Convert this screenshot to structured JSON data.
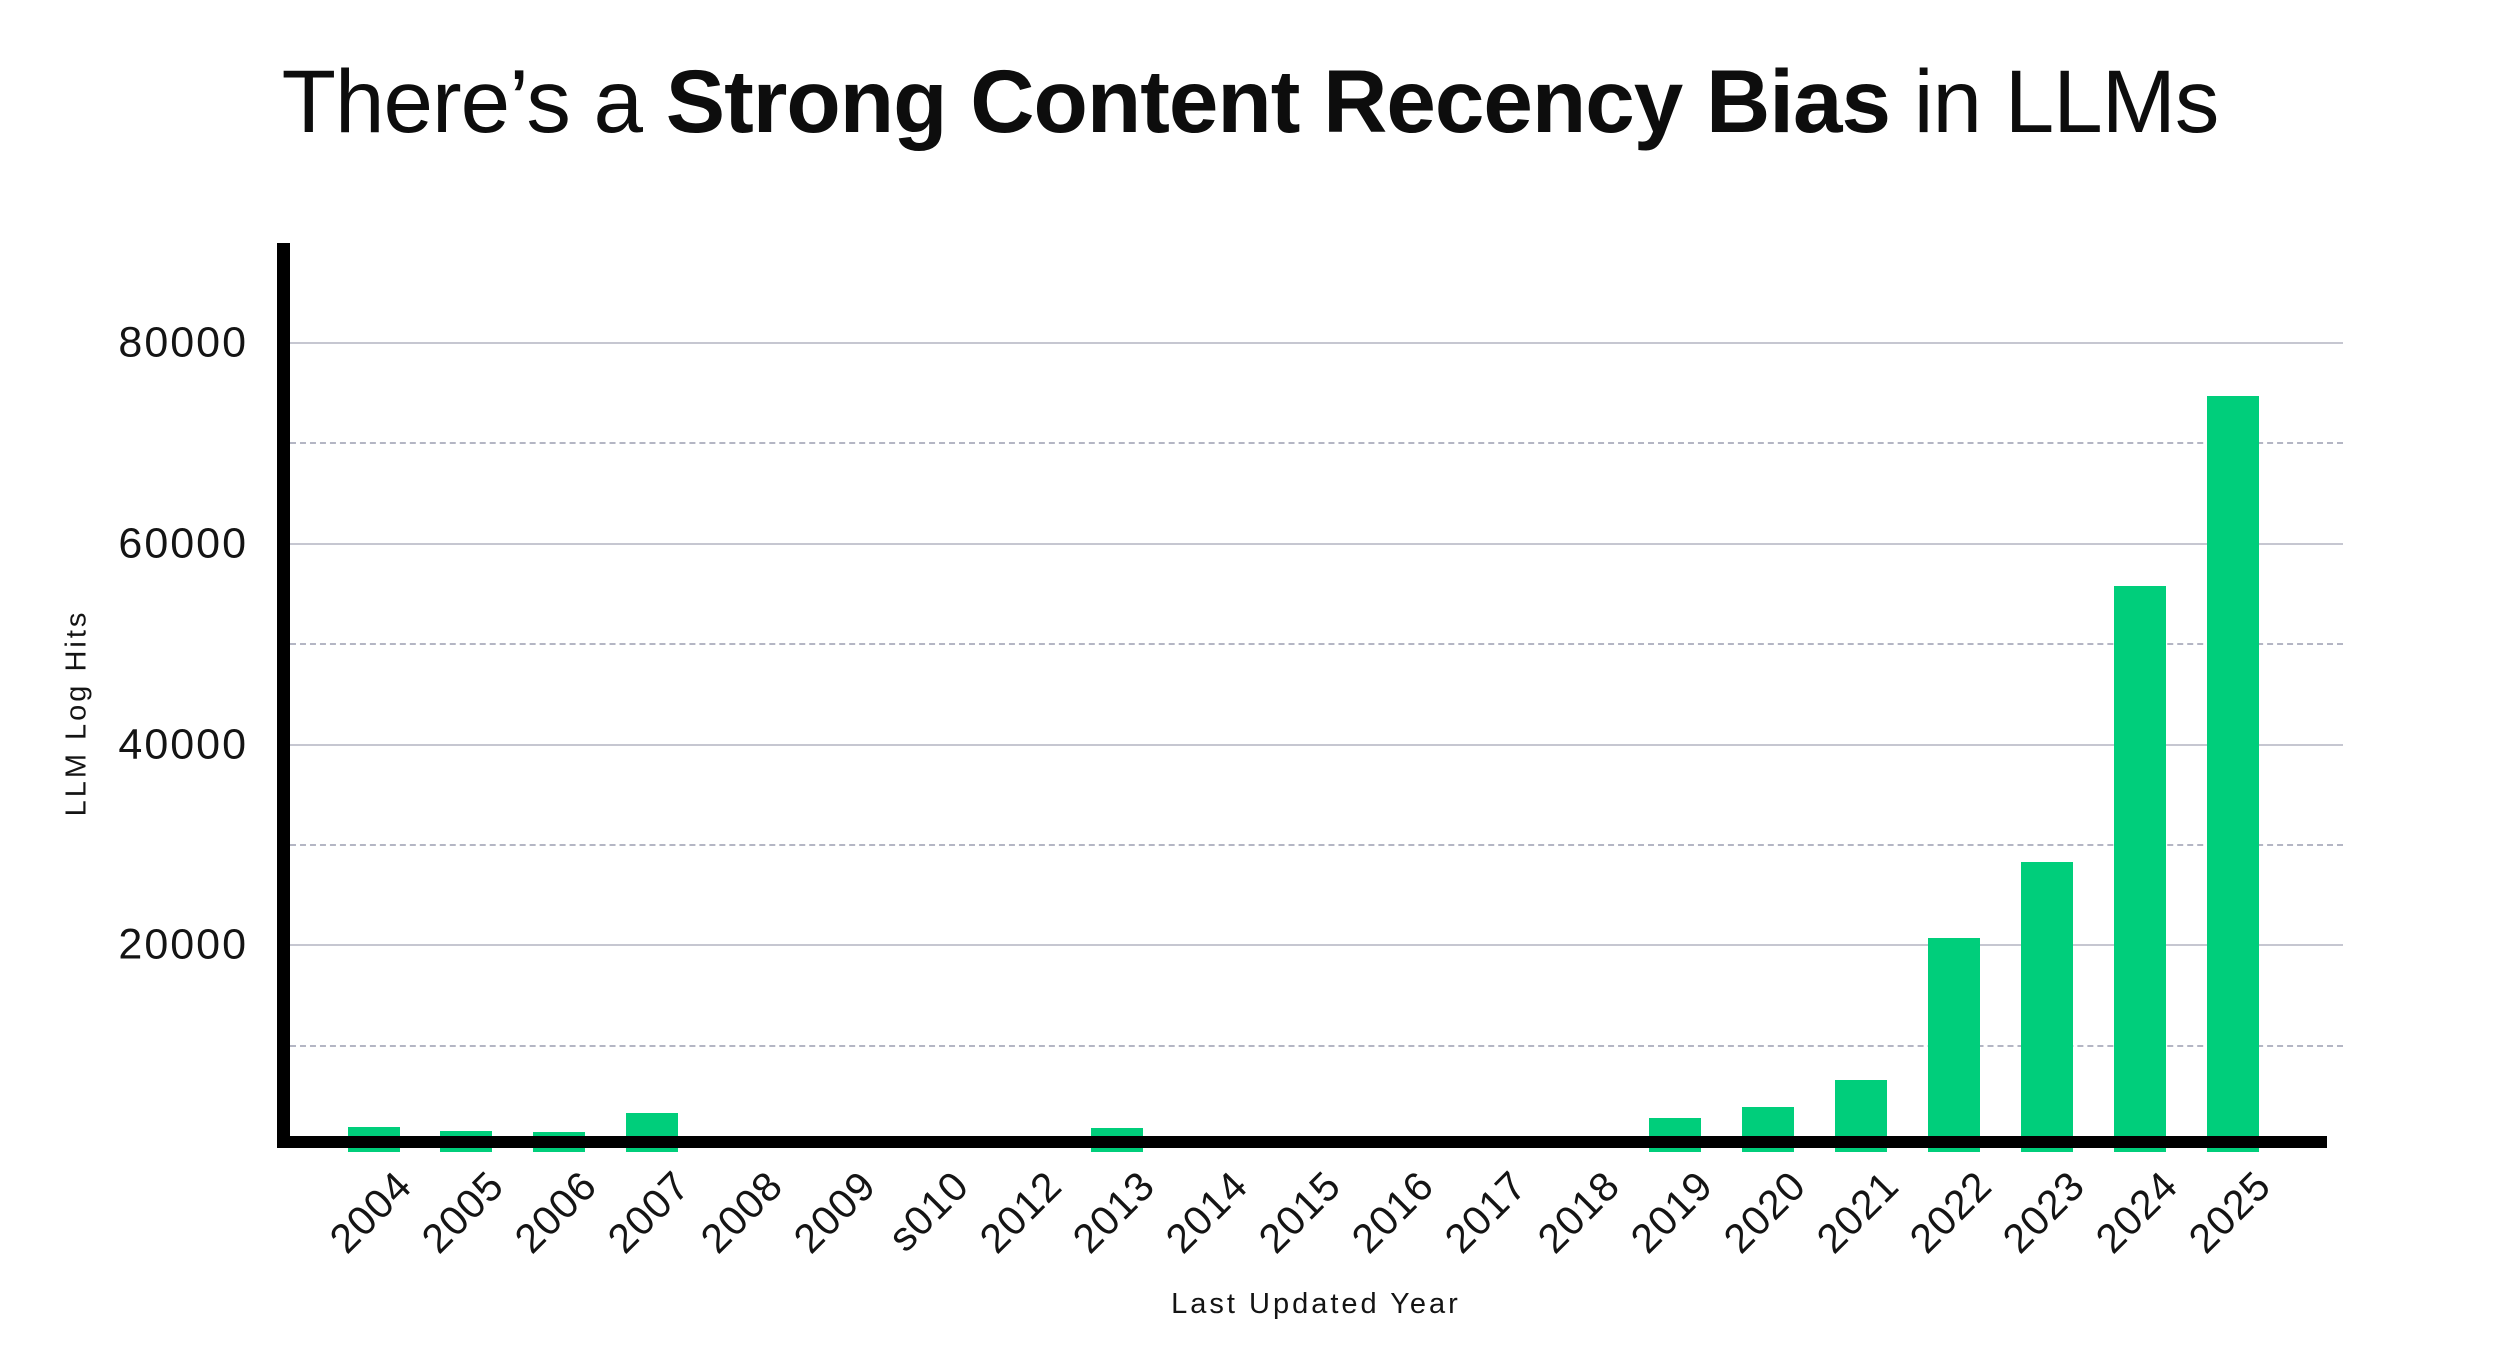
{
  "title": {
    "prefix": "There’s a ",
    "emphasis": "Strong Content Recency Bias",
    "suffix": " in LLMs"
  },
  "chart_data": {
    "type": "bar",
    "title": "There’s a Strong Content Recency Bias in LLMs",
    "xlabel": "Last Updated Year",
    "ylabel": "LLM Log Hits",
    "categories": [
      "2004",
      "2005",
      "2006",
      "2007",
      "2008",
      "2009",
      "s010",
      "2012",
      "2013",
      "2014",
      "2015",
      "2016",
      "2017",
      "2018",
      "2019",
      "2020",
      "2021",
      "2022",
      "2023",
      "2024",
      "2025"
    ],
    "values": [
      1900,
      1500,
      1400,
      3300,
      0,
      0,
      0,
      0,
      1800,
      0,
      0,
      0,
      0,
      0,
      2800,
      3900,
      6600,
      20700,
      28300,
      55800,
      74700
    ],
    "ylim": [
      0,
      90000
    ],
    "yticks": [
      20000,
      40000,
      60000,
      80000
    ],
    "ytick_labels": [
      "20000",
      "40000",
      "60000",
      "80000"
    ],
    "minor_gridlines": [
      10000,
      30000,
      50000,
      70000
    ],
    "grid": "horizontal; solid lines at major ticks, dashed lines at minor ticks",
    "legend": "none",
    "bar_color": "#00CE7B",
    "gridline_color": "#c6c7d1",
    "axis_color": "#000000"
  }
}
